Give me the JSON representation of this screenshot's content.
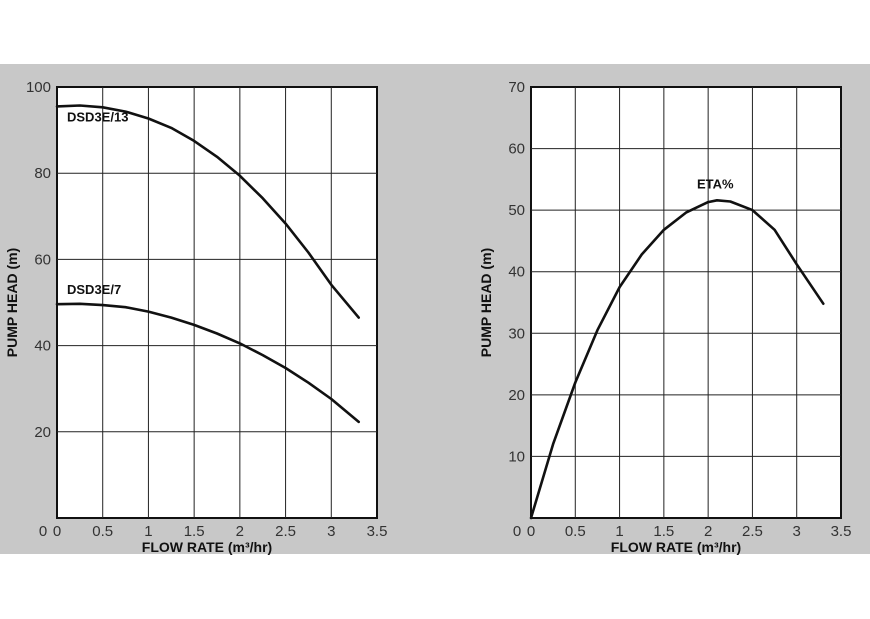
{
  "chart_data": [
    {
      "type": "line",
      "xlabel": "FLOW RATE (m³/hr)",
      "ylabel": "PUMP HEAD (m)",
      "xlim": [
        0,
        3.5
      ],
      "ylim": [
        0,
        100
      ],
      "x_ticks": [
        "0",
        "0.5",
        "1",
        "1.5",
        "2",
        "2.5",
        "3",
        "3.5"
      ],
      "y_ticks": [
        "20",
        "40",
        "60",
        "80",
        "100"
      ],
      "grid": true,
      "series": [
        {
          "name": "DSD3E/13",
          "x": [
            0,
            0.25,
            0.5,
            0.75,
            1.0,
            1.25,
            1.5,
            1.75,
            2.0,
            2.25,
            2.5,
            2.75,
            3.0,
            3.3
          ],
          "y": [
            95.5,
            95.7,
            95.3,
            94.3,
            92.7,
            90.5,
            87.5,
            83.8,
            79.4,
            74.2,
            68.3,
            61.6,
            54.1,
            46.5
          ]
        },
        {
          "name": "DSD3E/7",
          "x": [
            0,
            0.25,
            0.5,
            0.75,
            1.0,
            1.25,
            1.5,
            1.75,
            2.0,
            2.25,
            2.5,
            2.75,
            3.0,
            3.3
          ],
          "y": [
            49.6,
            49.7,
            49.4,
            48.9,
            47.9,
            46.5,
            44.8,
            42.8,
            40.5,
            37.8,
            34.8,
            31.4,
            27.6,
            22.3
          ]
        }
      ]
    },
    {
      "type": "line",
      "xlabel": "FLOW RATE (m³/hr)",
      "ylabel": "PUMP HEAD (m)",
      "xlim": [
        0,
        3.5
      ],
      "ylim": [
        0,
        70
      ],
      "x_ticks": [
        "0",
        "0.5",
        "1",
        "1.5",
        "2",
        "2.5",
        "3",
        "3.5"
      ],
      "y_ticks": [
        "10",
        "20",
        "30",
        "40",
        "50",
        "60",
        "70"
      ],
      "grid": true,
      "series": [
        {
          "name": "ETA%",
          "x": [
            0,
            0.25,
            0.5,
            0.75,
            1.0,
            1.25,
            1.5,
            1.75,
            2.0,
            2.1,
            2.25,
            2.5,
            2.75,
            3.0,
            3.3
          ],
          "y": [
            0,
            12,
            22,
            30.5,
            37.5,
            42.8,
            46.8,
            49.6,
            51.3,
            51.6,
            51.4,
            50.0,
            46.8,
            41.2,
            34.8
          ]
        }
      ]
    }
  ]
}
